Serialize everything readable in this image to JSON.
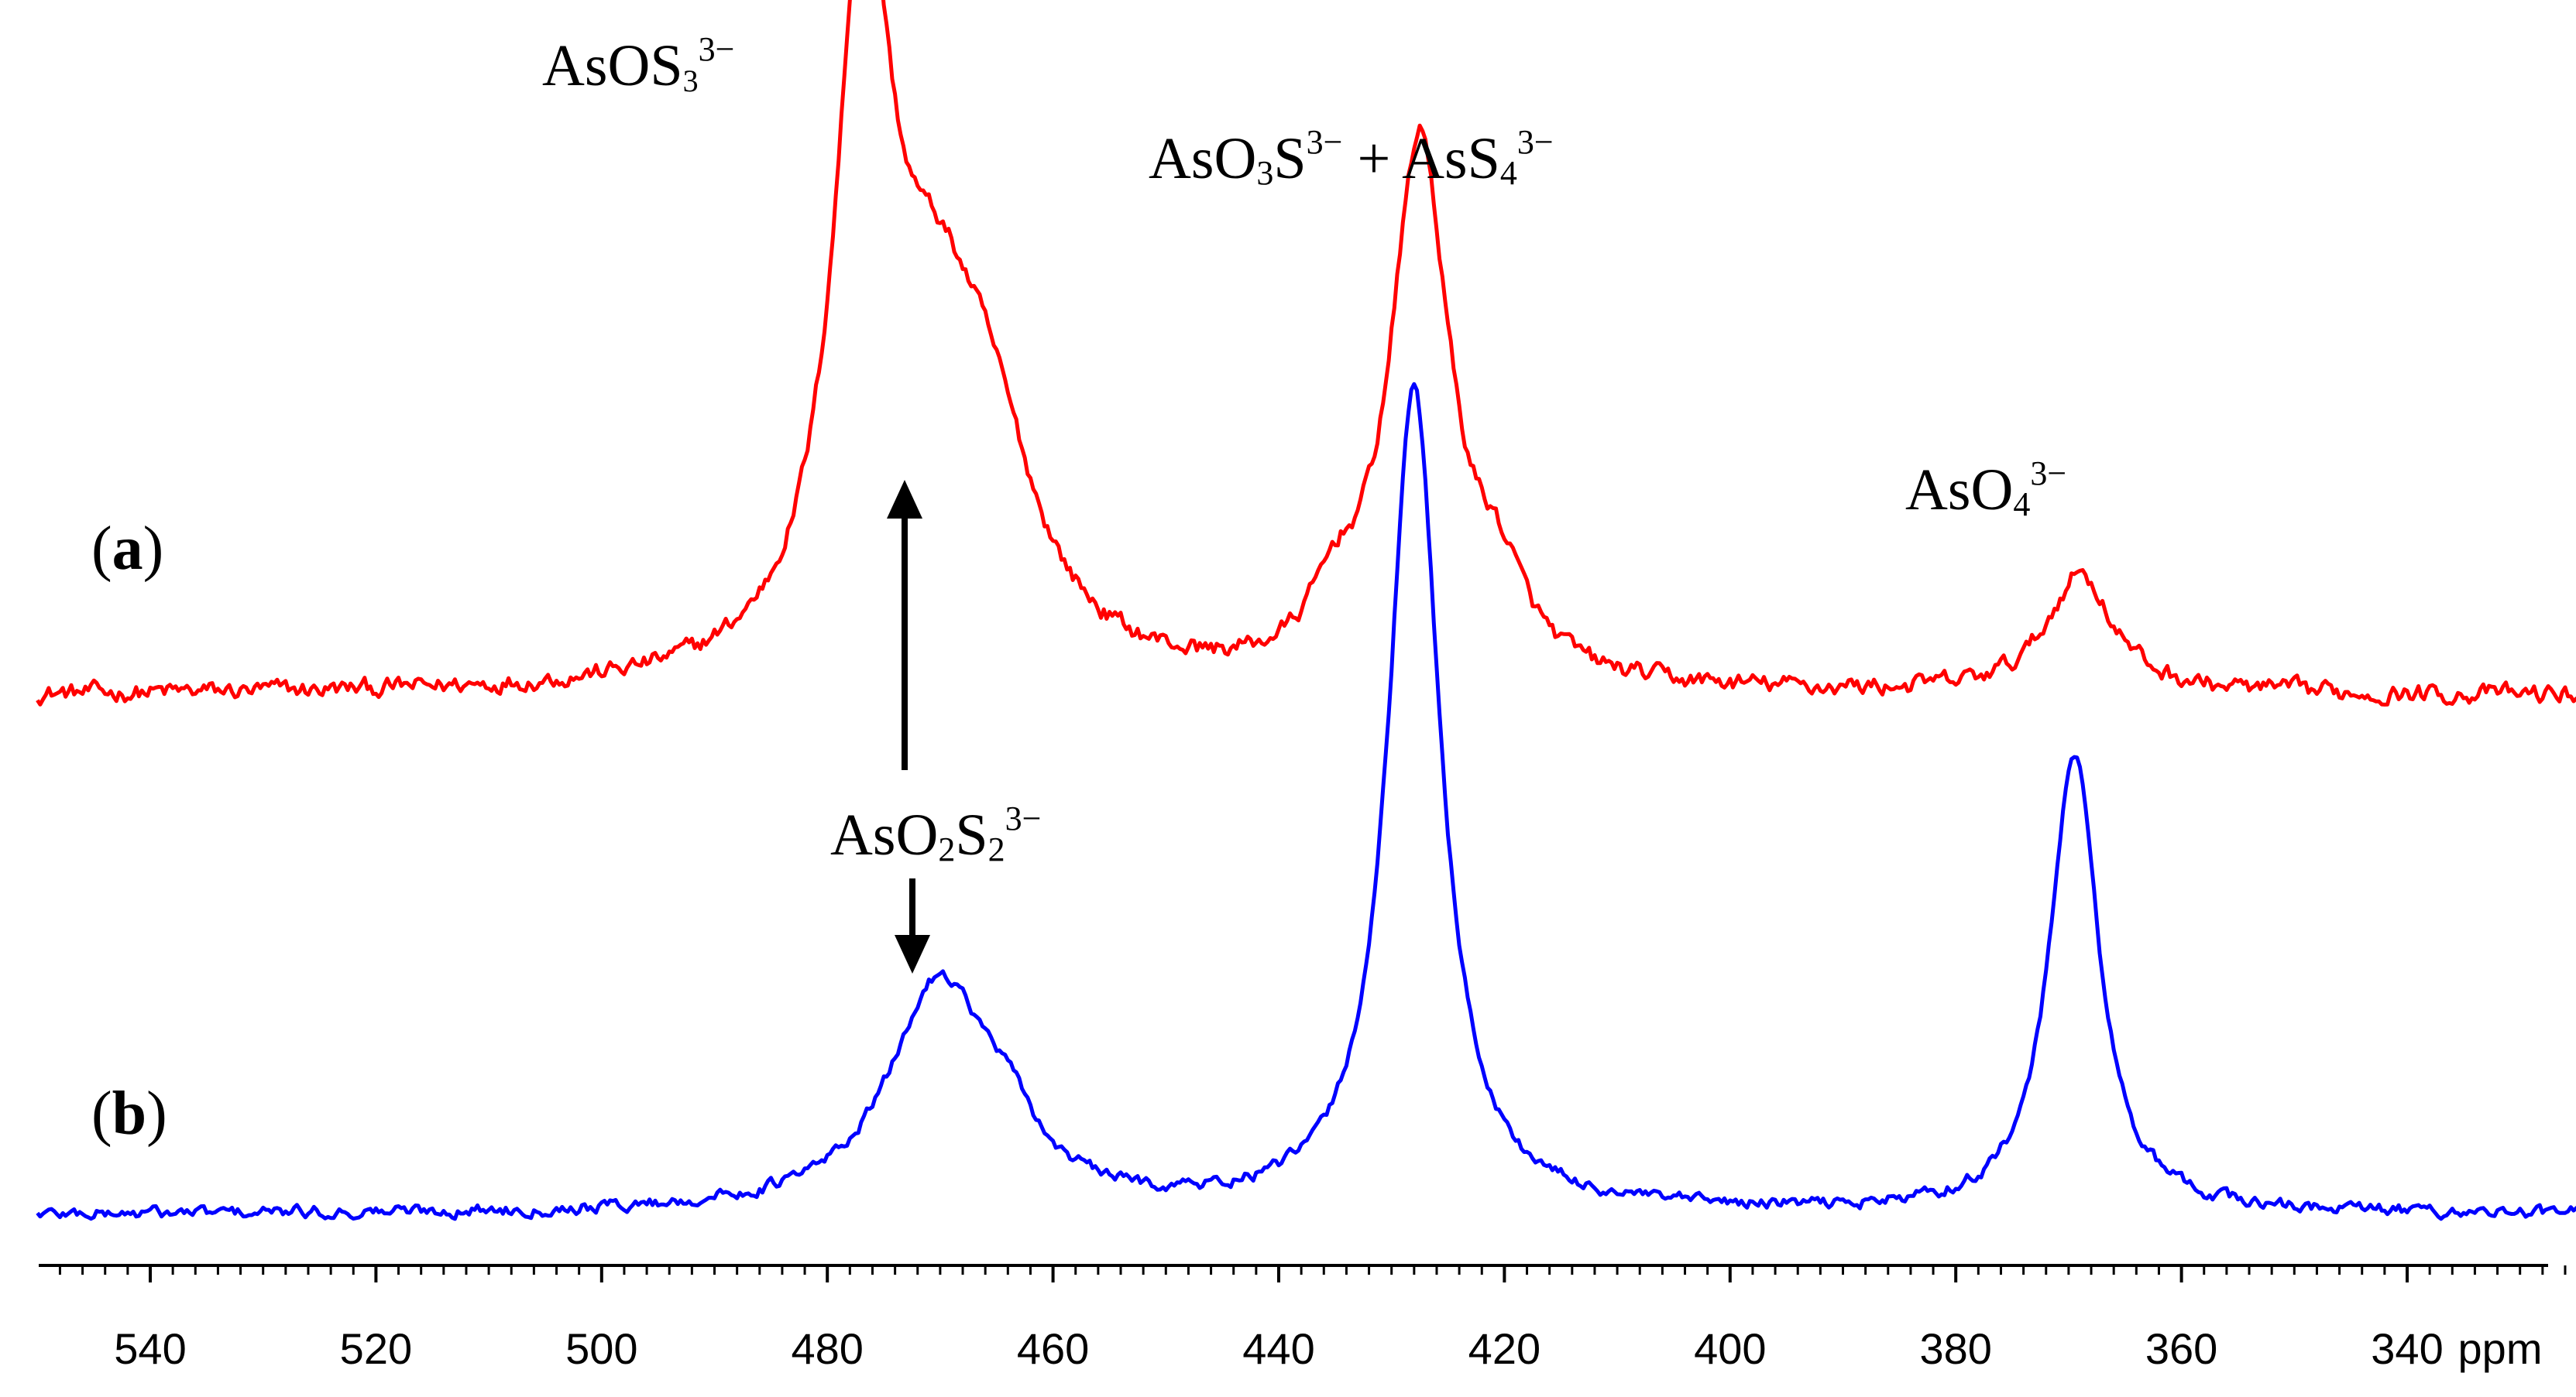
{
  "chart_data": {
    "type": "line",
    "title": "",
    "xlabel": "ppm",
    "ylabel": "",
    "x_reversed": true,
    "xlim": [
      550,
      323
    ],
    "xticks": [
      540,
      520,
      500,
      480,
      460,
      440,
      420,
      400,
      380,
      360,
      340
    ],
    "tick_labels": [
      "540",
      "520",
      "500",
      "480",
      "460",
      "440",
      "420",
      "400",
      "380",
      "360",
      "340"
    ],
    "series": [
      {
        "name": "(a)",
        "color": "#ff0000",
        "baseline": 0.0,
        "noise": 0.02,
        "peaks": [
          {
            "center": 476.8,
            "height": 0.72,
            "width": 3.0
          },
          {
            "center": 470.5,
            "height": 0.3,
            "width": 5.5
          },
          {
            "center": 465.5,
            "height": 0.17,
            "width": 5.0
          },
          {
            "center": 427.5,
            "height": 0.58,
            "width": 3.2
          },
          {
            "center": 435.0,
            "height": 0.06,
            "width": 2.5
          },
          {
            "center": 420.5,
            "height": 0.08,
            "width": 3.0
          },
          {
            "center": 369.0,
            "height": 0.13,
            "width": 3.5
          }
        ]
      },
      {
        "name": "(b)",
        "color": "#0000ff",
        "baseline": 0.0,
        "noise": 0.015,
        "peaks": [
          {
            "center": 470.0,
            "height": 0.28,
            "width": 5.5
          },
          {
            "center": 464.0,
            "height": 0.05,
            "width": 3.0
          },
          {
            "center": 428.0,
            "height": 1.0,
            "width": 2.8
          },
          {
            "center": 369.5,
            "height": 0.56,
            "width": 2.6
          }
        ]
      }
    ],
    "annotations": {
      "peak_asos3": {
        "base": "AsOS",
        "sub": "3",
        "sup": "3−"
      },
      "peak_aso3s": {
        "base1": "AsO",
        "sub1": "3",
        "mid": "S",
        "sup1": "3−",
        "plus": " + ",
        "base2": "AsS",
        "sub2": "4",
        "sup2": "3−"
      },
      "peak_aso4": {
        "base": "AsO",
        "sub": "4",
        "sup": "3−"
      },
      "peak_aso2s2": {
        "base": "AsO",
        "sub1": "2",
        "mid": "S",
        "sub2": "2",
        "sup": "3−"
      }
    },
    "panel_labels": [
      {
        "open": "(",
        "letter": "a",
        "close": ")"
      },
      {
        "open": "(",
        "letter": "b",
        "close": ")"
      }
    ]
  }
}
